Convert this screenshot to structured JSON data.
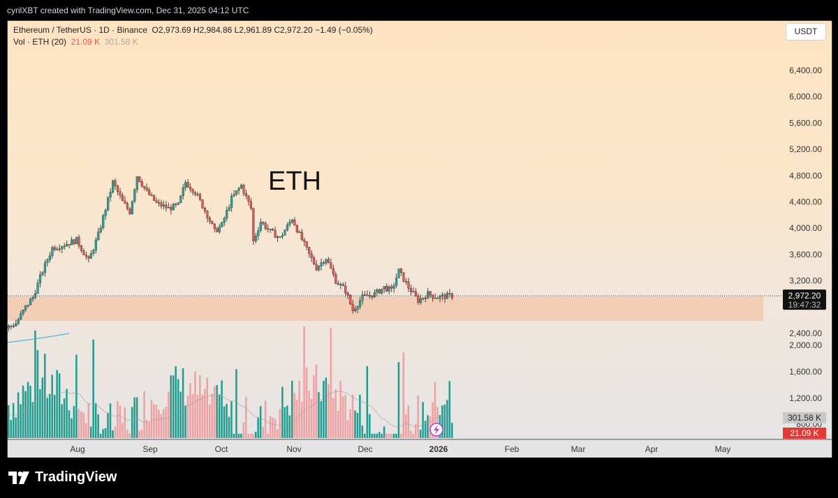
{
  "credit": "cyrilXBT created with TradingView.com, Dec 31, 2025 04:12 UTC",
  "legend": {
    "symbol": "Ethereum / TetherUS · 1D · Binance",
    "ohlc": "O2,973.69  H2,984.86  L2,961.89  C2,972.20  −1.49 (−0.05%)",
    "vol_label": "Vol · ETH (20)",
    "vol_value": "21.09 K",
    "vol_ma": "301.58 K"
  },
  "currency_button": "USDT",
  "annotation": "ETH",
  "price_tag": {
    "price": "2,972.20",
    "countdown": "19:47:32"
  },
  "volume_tags": {
    "ma": "301.58 K",
    "current": "21.09 K"
  },
  "brand": "TradingView",
  "colors": {
    "up": "#26a69a",
    "down": "#ef5350",
    "up_vol": "#1f9c8e",
    "down_vol": "#f0a0a0",
    "zone": "#f2c9b0",
    "ma": "#4ab8d8"
  },
  "chart_data": {
    "type": "candlestick",
    "title": "Ethereum / TetherUS · 1D · Binance",
    "y_axis_ticks": [
      "6,400.00",
      "6,000.00",
      "5,600.00",
      "5,200.00",
      "4,800.00",
      "4,400.00",
      "4,000.00",
      "3,600.00",
      "3,200.00",
      "2,400.00",
      "2,000.00",
      "1,600.00",
      "1,200.00",
      "800.00"
    ],
    "x_axis_ticks": [
      "Aug",
      "Sep",
      "Oct",
      "Nov",
      "Dec",
      "2026",
      "Feb",
      "Mar",
      "Apr",
      "May"
    ],
    "support_zone": [
      2590,
      2960
    ],
    "last_price": 2972.2,
    "price_path": [
      [
        "2025-07-01",
        2480
      ],
      [
        "2025-07-05",
        2550
      ],
      [
        "2025-07-09",
        2800
      ],
      [
        "2025-07-12",
        2950
      ],
      [
        "2025-07-16",
        3350
      ],
      [
        "2025-07-20",
        3700
      ],
      [
        "2025-07-25",
        3750
      ],
      [
        "2025-07-30",
        3820
      ],
      [
        "2025-08-04",
        3500
      ],
      [
        "2025-08-08",
        3900
      ],
      [
        "2025-08-11",
        4300
      ],
      [
        "2025-08-14",
        4700
      ],
      [
        "2025-08-18",
        4400
      ],
      [
        "2025-08-21",
        4250
      ],
      [
        "2025-08-24",
        4800
      ],
      [
        "2025-08-28",
        4550
      ],
      [
        "2025-09-01",
        4380
      ],
      [
        "2025-09-06",
        4300
      ],
      [
        "2025-09-10",
        4350
      ],
      [
        "2025-09-13",
        4700
      ],
      [
        "2025-09-17",
        4550
      ],
      [
        "2025-09-22",
        4200
      ],
      [
        "2025-09-25",
        3950
      ],
      [
        "2025-09-28",
        4050
      ],
      [
        "2025-10-02",
        4450
      ],
      [
        "2025-10-06",
        4650
      ],
      [
        "2025-10-10",
        4300
      ],
      [
        "2025-10-11",
        3800
      ],
      [
        "2025-10-14",
        4100
      ],
      [
        "2025-10-18",
        3950
      ],
      [
        "2025-10-22",
        3850
      ],
      [
        "2025-10-27",
        4150
      ],
      [
        "2025-10-30",
        3900
      ],
      [
        "2025-11-03",
        3600
      ],
      [
        "2025-11-06",
        3400
      ],
      [
        "2025-11-10",
        3550
      ],
      [
        "2025-11-14",
        3200
      ],
      [
        "2025-11-18",
        3050
      ],
      [
        "2025-11-21",
        2750
      ],
      [
        "2025-11-25",
        2950
      ],
      [
        "2025-11-30",
        3000
      ],
      [
        "2025-12-04",
        3100
      ],
      [
        "2025-12-07",
        3050
      ],
      [
        "2025-12-10",
        3350
      ],
      [
        "2025-12-14",
        3100
      ],
      [
        "2025-12-18",
        2900
      ],
      [
        "2025-12-22",
        3000
      ],
      [
        "2025-12-26",
        2950
      ],
      [
        "2025-12-31",
        2972
      ]
    ],
    "volume_ma_value": "301.58 K",
    "volume_last_value": "21.09 K"
  }
}
